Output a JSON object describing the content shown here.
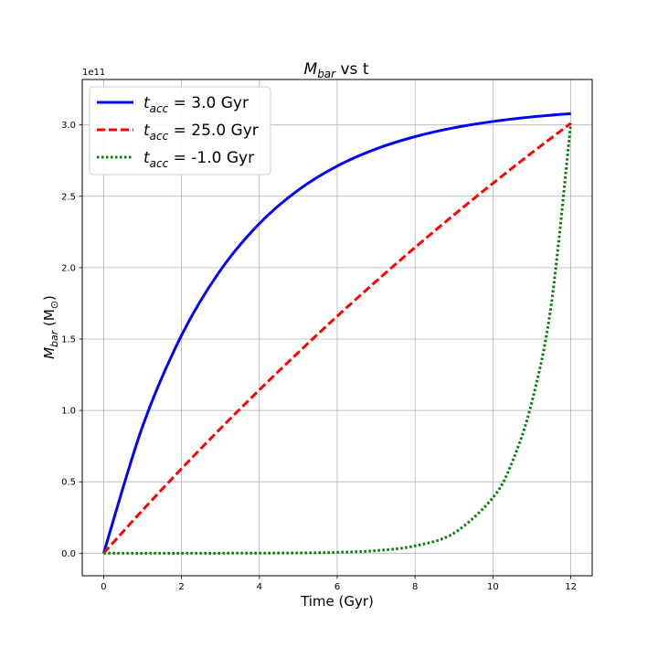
{
  "chart_data": {
    "type": "line",
    "title": "M_bar vs t",
    "title_parts": {
      "main": "M",
      "sub": "bar",
      "rest": " vs t"
    },
    "xlabel": "Time (Gyr)",
    "ylabel_parts": {
      "main": "M",
      "sub": "bar",
      "unit_open": " (M",
      "unit_sub": "⊙",
      "unit_close": ")"
    },
    "xlim": [
      -0.55,
      12.55
    ],
    "ylim": [
      -0.158,
      3.318
    ],
    "y_scale_label": "1e11",
    "y_multiplier": 100000000000.0,
    "xticks": [
      0,
      2,
      4,
      6,
      8,
      10,
      12
    ],
    "xtick_labels": [
      "0",
      "2",
      "4",
      "6",
      "8",
      "10",
      "12"
    ],
    "yticks": [
      0.0,
      0.5,
      1.0,
      1.5,
      2.0,
      2.5,
      3.0
    ],
    "ytick_labels": [
      "0.0",
      "0.5",
      "1.0",
      "1.5",
      "2.0",
      "2.5",
      "3.0"
    ],
    "grid": true,
    "legend_position": "top-left",
    "series": [
      {
        "name": "t_acc = 3.0 Gyr",
        "label_var": "t",
        "label_sub": "acc",
        "label_value": " = 3.0 Gyr",
        "color": "#0000ff",
        "style": "solid",
        "x": [
          0,
          1,
          2,
          3,
          4,
          5,
          6,
          7,
          8,
          9,
          10,
          11,
          12
        ],
        "y": [
          0.0,
          0.889,
          1.526,
          1.982,
          2.309,
          2.544,
          2.712,
          2.832,
          2.918,
          2.98,
          3.024,
          3.056,
          3.079
        ]
      },
      {
        "name": "t_acc = 25.0 Gyr",
        "label_var": "t",
        "label_sub": "acc",
        "label_value": " = 25.0 Gyr",
        "color": "#ff0000",
        "style": "dashed",
        "x": [
          0,
          1,
          2,
          3,
          4,
          5,
          6,
          7,
          8,
          9,
          10,
          11,
          12
        ],
        "y": [
          0.0,
          0.301,
          0.592,
          0.873,
          1.144,
          1.406,
          1.66,
          1.905,
          2.142,
          2.37,
          2.591,
          2.805,
          3.011
        ]
      },
      {
        "name": "t_acc = -1.0 Gyr",
        "label_var": "t",
        "label_sub": "acc",
        "label_value": " = -1.0 Gyr",
        "color": "#008000",
        "style": "dotted",
        "x": [
          0,
          1,
          2,
          3,
          4,
          5,
          6,
          7,
          8,
          9,
          10,
          10.5,
          11,
          11.5,
          12
        ],
        "y": [
          0.0,
          0.0,
          0.0,
          0.0,
          0.0005,
          0.002,
          0.006,
          0.018,
          0.051,
          0.141,
          0.389,
          0.642,
          1.059,
          1.745,
          3.011
        ]
      }
    ]
  }
}
